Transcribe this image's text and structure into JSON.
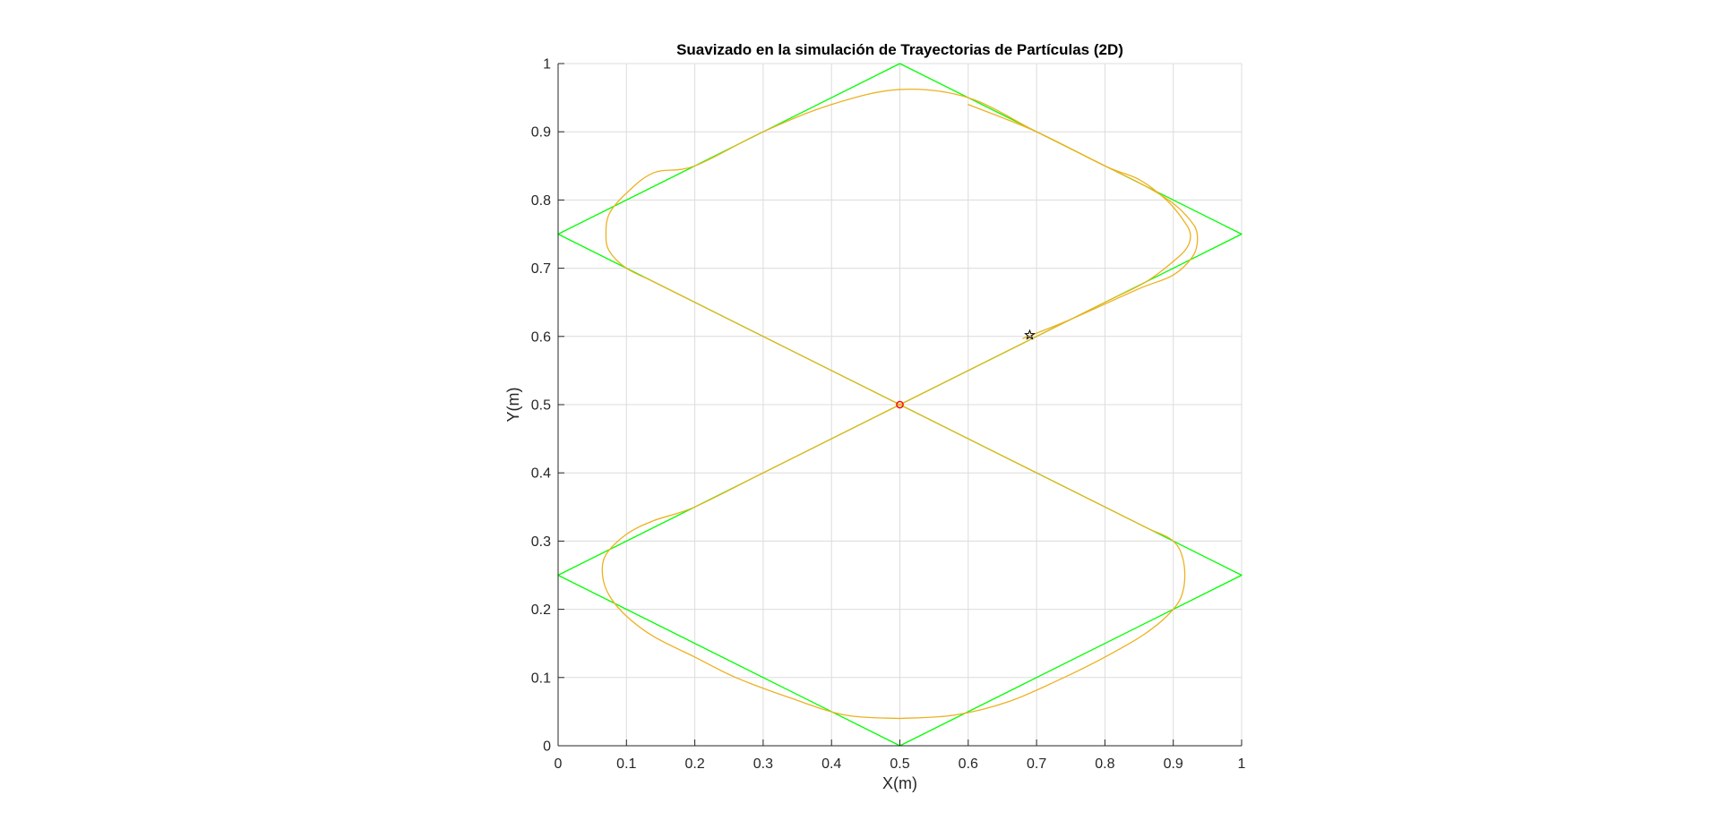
{
  "chart_data": {
    "type": "line",
    "title": "Suavizado en la simulación de Trayectorias de Partículas (2D)",
    "xlabel": "X(m)",
    "ylabel": "Y(m)",
    "xlim": [
      0,
      1
    ],
    "ylim": [
      0,
      1
    ],
    "grid": true,
    "x_ticks": [
      "0",
      "0.1",
      "0.2",
      "0.3",
      "0.4",
      "0.5",
      "0.6",
      "0.7",
      "0.8",
      "0.9",
      "1"
    ],
    "y_ticks": [
      "0",
      "0.1",
      "0.2",
      "0.3",
      "0.4",
      "0.5",
      "0.6",
      "0.7",
      "0.8",
      "0.9",
      "1"
    ],
    "x_tick_values": [
      0,
      0.1,
      0.2,
      0.3,
      0.4,
      0.5,
      0.6,
      0.7,
      0.8,
      0.9,
      1
    ],
    "y_tick_values": [
      0,
      0.1,
      0.2,
      0.3,
      0.4,
      0.5,
      0.6,
      0.7,
      0.8,
      0.9,
      1
    ],
    "series": [
      {
        "kind": "reference-path",
        "color": "#00ff00",
        "x": [
          0.5,
          1,
          0,
          0.5,
          1,
          0,
          0.5
        ],
        "y": [
          0,
          0.25,
          0.75,
          1,
          0.75,
          0.25,
          0
        ]
      },
      {
        "kind": "smoothed-path",
        "color": "#edb120",
        "x": [
          0.5,
          0.58,
          0.66,
          0.74,
          0.8,
          0.86,
          0.9,
          0.915,
          0.915,
          0.9,
          0.86,
          0.8,
          0.7,
          0.6,
          0.5,
          0.4,
          0.3,
          0.2,
          0.14,
          0.1,
          0.075,
          0.07,
          0.075,
          0.1,
          0.14,
          0.2,
          0.3,
          0.4,
          0.5,
          0.6,
          0.7,
          0.8,
          0.86,
          0.9,
          0.925,
          0.935,
          0.93,
          0.9,
          0.85,
          0.75,
          0.68
        ],
        "y": [
          0.04,
          0.045,
          0.065,
          0.1,
          0.13,
          0.165,
          0.2,
          0.23,
          0.27,
          0.3,
          0.32,
          0.35,
          0.4,
          0.45,
          0.5,
          0.55,
          0.6,
          0.65,
          0.68,
          0.7,
          0.725,
          0.75,
          0.78,
          0.81,
          0.84,
          0.85,
          0.9,
          0.94,
          0.962,
          0.95,
          0.9,
          0.85,
          0.82,
          0.795,
          0.77,
          0.75,
          0.72,
          0.69,
          0.67,
          0.625,
          0.597
        ]
      },
      {
        "kind": "smoothed-path",
        "color": "#edb120",
        "x": [
          0.5,
          0.42,
          0.34,
          0.26,
          0.2,
          0.14,
          0.1,
          0.075,
          0.065,
          0.07,
          0.1,
          0.14,
          0.2,
          0.3,
          0.4,
          0.5,
          0.6,
          0.7,
          0.8,
          0.86,
          0.9,
          0.92,
          0.925,
          0.915,
          0.89,
          0.85,
          0.8,
          0.7,
          0.6
        ],
        "y": [
          0.04,
          0.045,
          0.07,
          0.1,
          0.13,
          0.16,
          0.19,
          0.22,
          0.25,
          0.28,
          0.31,
          0.33,
          0.35,
          0.4,
          0.45,
          0.5,
          0.55,
          0.6,
          0.65,
          0.68,
          0.71,
          0.73,
          0.75,
          0.77,
          0.8,
          0.83,
          0.85,
          0.9,
          0.94
        ]
      }
    ],
    "markers": [
      {
        "kind": "start-point",
        "shape": "circle",
        "color": "#ff0000",
        "x": 0.5,
        "y": 0.5
      },
      {
        "kind": "current-point",
        "shape": "pentagram",
        "color": "#000000",
        "x": 0.69,
        "y": 0.602
      }
    ]
  }
}
